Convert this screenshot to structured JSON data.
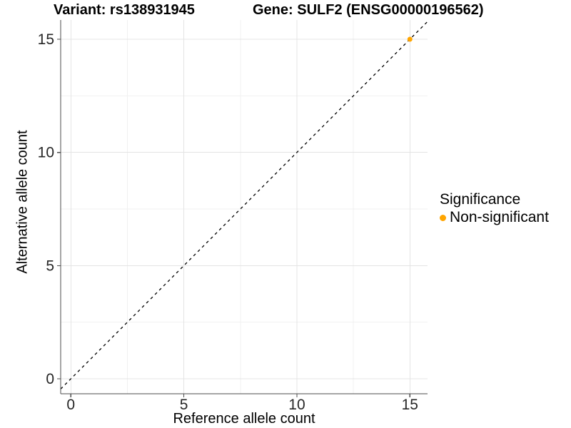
{
  "chart_data": {
    "type": "scatter",
    "titles": {
      "variant": "Variant: rs138931945",
      "gene": "Gene: SULF2 (ENSG00000196562)"
    },
    "xlabel": "Reference allele count",
    "ylabel": "Alternative allele count",
    "xlim": [
      -0.45,
      15.78
    ],
    "ylim": [
      -0.66,
      15.85
    ],
    "xticks": [
      0,
      5,
      10,
      15
    ],
    "yticks": [
      0,
      5,
      10,
      15
    ],
    "minor_xticks": [
      2.5,
      7.5,
      12.5
    ],
    "minor_yticks": [
      2.5,
      7.5,
      12.5
    ],
    "grid": "major+minor",
    "identity_line": {
      "slope": 1,
      "intercept": 0,
      "style": "dashed",
      "color": "#000000"
    },
    "series": [
      {
        "name": "Non-significant",
        "color": "#FFA500",
        "points": [
          {
            "x": 15,
            "y": 15
          }
        ]
      }
    ],
    "legend": {
      "title": "Significance",
      "position": "right",
      "items": [
        {
          "label": "Non-significant",
          "color": "#FFA500"
        }
      ]
    },
    "colors": {
      "background": "#FFFFFF",
      "grid_major": "#E4E4E4",
      "grid_minor": "#F1F1F1",
      "axis": "#4D4D4D",
      "tick_text": "#262626"
    }
  }
}
